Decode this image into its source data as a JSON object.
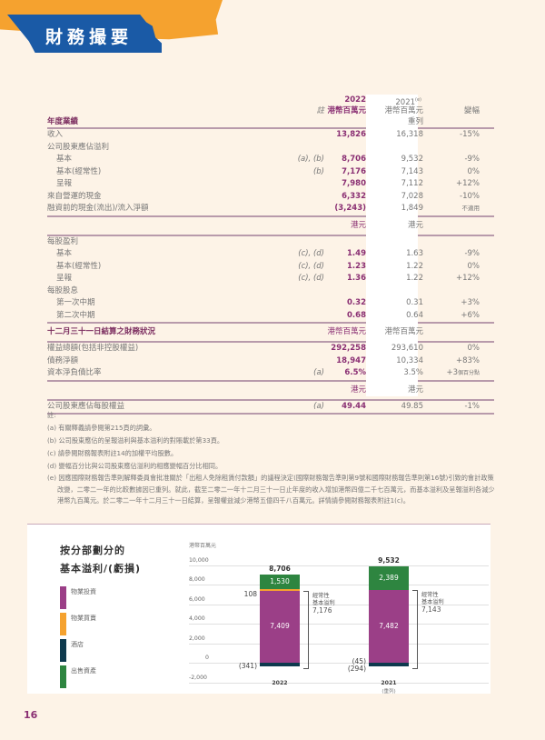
{
  "header": {
    "title": "財務撮要"
  },
  "table": {
    "columns": {
      "note": "註",
      "y2022": "2022",
      "y2022_unit": "港幣百萬元",
      "y2021": "2021",
      "y2021_sup": "(e)",
      "y2021_unit": "港幣百萬元",
      "y2021_restated": "重列",
      "change": "變幅"
    },
    "section1_title": "年度業績",
    "section1": [
      {
        "label": "收入",
        "indent": false,
        "note": "",
        "v22": "13,826",
        "v21": "16,318",
        "chg": "-15%"
      },
      {
        "label": "公司股東應佔溢利",
        "indent": false,
        "note": "",
        "v22": "",
        "v21": "",
        "chg": ""
      },
      {
        "label": "基本",
        "indent": true,
        "note": "(a), (b)",
        "v22": "8,706",
        "v21": "9,532",
        "chg": "-9%"
      },
      {
        "label": "基本(經常性)",
        "indent": true,
        "note": "(b)",
        "v22": "7,176",
        "v21": "7,143",
        "chg": "0%"
      },
      {
        "label": "呈報",
        "indent": true,
        "note": "",
        "v22": "7,980",
        "v21": "7,112",
        "chg": "+12%"
      },
      {
        "label": "來自營運的現金",
        "indent": false,
        "note": "",
        "v22": "6,332",
        "v21": "7,028",
        "chg": "-10%"
      },
      {
        "label": "融資前的現金(流出)/流入淨額",
        "indent": false,
        "note": "",
        "v22": "(3,243)",
        "v21": "1,849",
        "chg": "不適用"
      }
    ],
    "unit_hkd_22": "港元",
    "unit_hkd_21": "港元",
    "section2": [
      {
        "label": "每股盈利",
        "indent": false,
        "note": "",
        "v22": "",
        "v21": "",
        "chg": ""
      },
      {
        "label": "基本",
        "indent": true,
        "note": "(c), (d)",
        "v22": "1.49",
        "v21": "1.63",
        "chg": "-9%"
      },
      {
        "label": "基本(經常性)",
        "indent": true,
        "note": "(c), (d)",
        "v22": "1.23",
        "v21": "1.22",
        "chg": "0%"
      },
      {
        "label": "呈報",
        "indent": true,
        "note": "(c), (d)",
        "v22": "1.36",
        "v21": "1.22",
        "chg": "+12%"
      },
      {
        "label": "每股股息",
        "indent": false,
        "note": "",
        "v22": "",
        "v21": "",
        "chg": ""
      },
      {
        "label": "第一次中期",
        "indent": true,
        "note": "",
        "v22": "0.32",
        "v21": "0.31",
        "chg": "+3%"
      },
      {
        "label": "第二次中期",
        "indent": true,
        "note": "",
        "v22": "0.68",
        "v21": "0.64",
        "chg": "+6%"
      }
    ],
    "section3_title": "十二月三十一日結算之財務狀況",
    "section3_unit22": "港幣百萬元",
    "section3_unit21": "港幣百萬元",
    "section3": [
      {
        "label": "權益總額(包括非控股權益)",
        "note": "",
        "v22": "292,258",
        "v21": "293,610",
        "chg": "0%"
      },
      {
        "label": "債務淨額",
        "note": "",
        "v22": "18,947",
        "v21": "10,334",
        "chg": "+83%"
      },
      {
        "label": "資本淨負債比率",
        "note": "(a)",
        "v22": "6.5%",
        "v21": "3.5%",
        "chg_main": "+3",
        "chg_small": "個百分點"
      }
    ],
    "unit2_hkd_22": "港元",
    "unit2_hkd_21": "港元",
    "section4": [
      {
        "label": "公司股東應佔每股權益",
        "note": "(a)",
        "v22": "49.44",
        "v21": "49.85",
        "chg": "-1%"
      }
    ]
  },
  "notes": {
    "title": "註:",
    "items": [
      "(a) 有關釋義請參閱第215頁的詞彙。",
      "(b) 公司股東應佔的呈報溢利與基本溢利的對賬載於第33頁。",
      "(c) 請參閱財務報表附註14的加權平均股數。",
      "(d) 變幅百分比與公司股東應佔溢利的相應變幅百分比相同。",
      "(e) 因應國際財務報告準則解釋委員會批准關於「出租人免除租賃付款額」的議程決定(國際財務報告準則第9號和國際財務報告準則第16號)引致的會計政策改變，二零二一年的比較數據因已重列。就此，截至二零二一年十二月三十一日止年度的收入增加港幣四億二千七百萬元，而基本溢利及呈報溢利各減少港幣九百萬元。於二零二一年十二月三十一日結算，呈報權益減少港幣五億四千八百萬元。詳情請參閱財務報表附註1(c)。"
    ]
  },
  "chart_data": {
    "type": "bar",
    "title": "按分部劃分的基本溢利/(虧損)",
    "ylabel": "港幣百萬元",
    "ylim": [
      -2000,
      10000
    ],
    "yticks": [
      "10,000",
      "8,000",
      "6,000",
      "4,000",
      "2,000",
      "0",
      "-2,000"
    ],
    "categories": [
      "2022",
      "2021"
    ],
    "category_sub": [
      "",
      "(重列)"
    ],
    "totals": [
      "8,706",
      "9,532"
    ],
    "series": [
      {
        "name": "物業投資",
        "color": "#9b3f87",
        "values": [
          7409,
          7482
        ],
        "labels": [
          "7,409",
          "7,482"
        ]
      },
      {
        "name": "物業買賣",
        "color": "#f5a22f",
        "values": [
          108,
          -45
        ],
        "labels": [
          "108",
          "(45)"
        ]
      },
      {
        "name": "酒店",
        "color": "#0e3a4e",
        "values": [
          -341,
          -294
        ],
        "labels": [
          "(341)",
          "(294)"
        ]
      },
      {
        "name": "出售資產",
        "color": "#2e8540",
        "values": [
          1530,
          2389
        ],
        "labels": [
          "1,530",
          "2,389"
        ]
      }
    ],
    "annotations": [
      {
        "bar": "2022",
        "text": [
          "經常性",
          "基本溢利",
          "7,176"
        ]
      },
      {
        "bar": "2021",
        "text": [
          "經常性",
          "基本溢利",
          "7,143"
        ]
      }
    ],
    "legend_position": "left"
  },
  "page_number": "16"
}
